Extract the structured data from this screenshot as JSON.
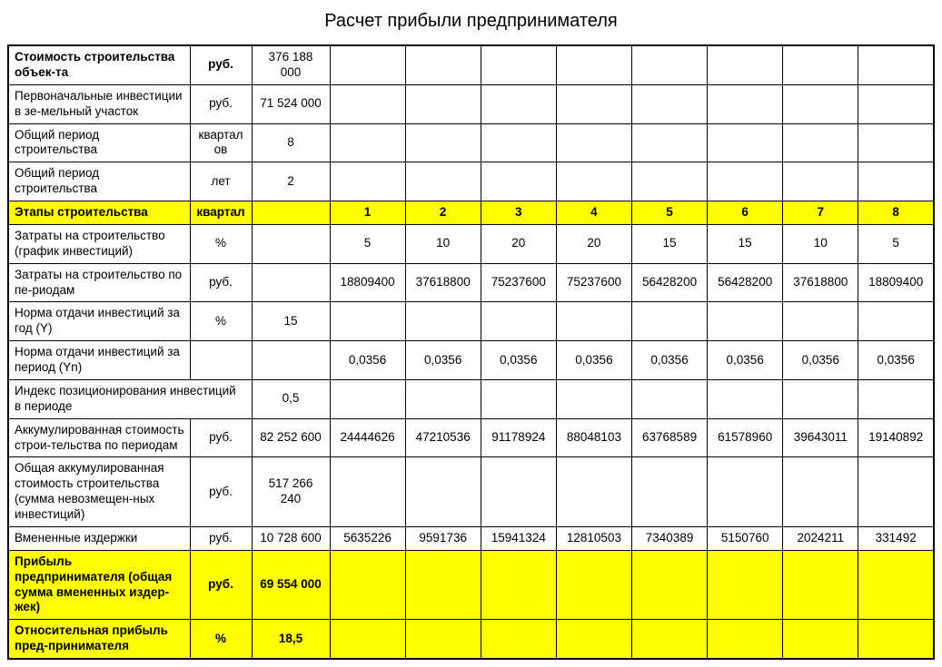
{
  "title": "Расчет прибыли предпринимателя",
  "colors": {
    "highlight": "#ffff00",
    "border": "#000000",
    "bg": "#ffffff"
  },
  "table": {
    "rows": [
      {
        "label": "Стоимость строительства объек-та",
        "unit": "руб.",
        "value": "376 188 000",
        "bold_label": true,
        "q": [
          "",
          "",
          "",
          "",
          "",
          "",
          "",
          ""
        ]
      },
      {
        "label": "Первоначальные инвестиции в зе-мельный участок",
        "unit": "руб.",
        "value": "71 524 000",
        "q": [
          "",
          "",
          "",
          "",
          "",
          "",
          "",
          ""
        ]
      },
      {
        "label": "Общий период строительства",
        "unit": "кварталов",
        "value": "8",
        "q": [
          "",
          "",
          "",
          "",
          "",
          "",
          "",
          ""
        ]
      },
      {
        "label": "Общий период строительства",
        "unit": "лет",
        "value": "2",
        "q": [
          "",
          "",
          "",
          "",
          "",
          "",
          "",
          ""
        ]
      },
      {
        "label": "Этапы строительства",
        "unit": "квартал",
        "value": "",
        "q": [
          "1",
          "2",
          "3",
          "4",
          "5",
          "6",
          "7",
          "8"
        ],
        "highlight": true,
        "bold_label": true,
        "bold_q": true
      },
      {
        "label": "Затраты на строительство (график инвестиций)",
        "unit": "%",
        "value": "",
        "q": [
          "5",
          "10",
          "20",
          "20",
          "15",
          "15",
          "10",
          "5"
        ]
      },
      {
        "label": "Затраты на строительство по пе-риодам",
        "unit": "руб.",
        "value": "",
        "q": [
          "18809400",
          "37618800",
          "75237600",
          "75237600",
          "56428200",
          "56428200",
          "37618800",
          "18809400"
        ]
      },
      {
        "label": "Норма отдачи инвестиций за год (Y)",
        "unit": "%",
        "value": "15",
        "q": [
          "",
          "",
          "",
          "",
          "",
          "",
          "",
          ""
        ]
      },
      {
        "label": "Норма отдачи инвестиций за период (Yn)",
        "unit": "",
        "value": "",
        "q": [
          "0,0356",
          "0,0356",
          "0,0356",
          "0,0356",
          "0,0356",
          "0,0356",
          "0,0356",
          "0,0356"
        ]
      },
      {
        "label": "Индекс позиционирования инвестиций в периоде",
        "label_span": 2,
        "value": "0,5",
        "q": [
          "",
          "",
          "",
          "",
          "",
          "",
          "",
          ""
        ]
      },
      {
        "label": "Аккумулированная стоимость строи-тельства по периодам",
        "unit": "руб.",
        "value": "82 252 600",
        "q": [
          "24444626",
          "47210536",
          "91178924",
          "88048103",
          "63768589",
          "61578960",
          "39643011",
          "19140892"
        ]
      },
      {
        "label": "Общая аккумулированная стоимость строительства (сумма невозмещен-ных инвестиций)",
        "unit": "руб.",
        "value": "517 266 240",
        "q": [
          "",
          "",
          "",
          "",
          "",
          "",
          "",
          ""
        ]
      },
      {
        "label": "Вмененные издержки",
        "unit": "руб.",
        "value": "10 728 600",
        "q": [
          "5635226",
          "9591736",
          "15941324",
          "12810503",
          "7340389",
          "5150760",
          "2024211",
          "331492"
        ]
      },
      {
        "label": "Прибыль предпринимателя (общая сумма вмененных издер-жек)",
        "unit": "руб.",
        "value": "69 554 000",
        "q": [
          "",
          "",
          "",
          "",
          "",
          "",
          "",
          ""
        ],
        "highlight": true,
        "bold_label": true,
        "bold_value": true
      },
      {
        "label": "Относительная прибыль пред-принимателя",
        "unit": "%",
        "value": "18,5",
        "q": [
          "",
          "",
          "",
          "",
          "",
          "",
          "",
          ""
        ],
        "highlight": true,
        "bold_label": true,
        "bold_value": true
      }
    ]
  }
}
